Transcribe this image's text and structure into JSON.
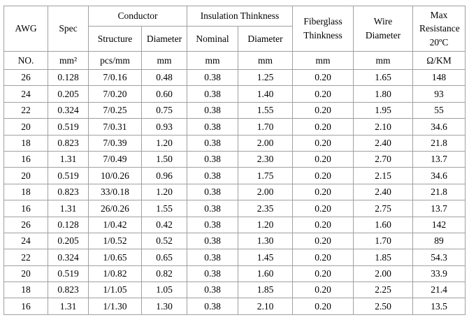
{
  "table": {
    "header": {
      "awg": "AWG",
      "spec": "Spec",
      "conductor": "Conductor",
      "structure": "Structure",
      "conductor_diameter": "Diameter",
      "insulation_thinkness": "Insulation Thinkness",
      "nominal": "Nominal",
      "insulation_diameter": "Diameter",
      "fiberglass_thinkness": "Fiberglass Thinkness",
      "wire_diameter": "Wire Diameter",
      "max_resistance": "Max Resistance 20ºC"
    },
    "units": [
      "NO.",
      "mm²",
      "pcs/mm",
      "mm",
      "mm",
      "mm",
      "mm",
      "mm",
      "Ω/KM"
    ],
    "column_keys": [
      "awg",
      "spec",
      "structure",
      "conductor-diameter",
      "nominal",
      "insulation-diameter",
      "fiberglass-thickness",
      "wire-diameter",
      "max-resistance"
    ],
    "rows": [
      [
        "26",
        "0.128",
        "7/0.16",
        "0.48",
        "0.38",
        "1.25",
        "0.20",
        "1.65",
        "148"
      ],
      [
        "24",
        "0.205",
        "7/0.20",
        "0.60",
        "0.38",
        "1.40",
        "0.20",
        "1.80",
        "93"
      ],
      [
        "22",
        "0.324",
        "7/0.25",
        "0.75",
        "0.38",
        "1.55",
        "0.20",
        "1.95",
        "55"
      ],
      [
        "20",
        "0.519",
        "7/0.31",
        "0.93",
        "0.38",
        "1.70",
        "0.20",
        "2.10",
        "34.6"
      ],
      [
        "18",
        "0.823",
        "7/0.39",
        "1.20",
        "0.38",
        "2.00",
        "0.20",
        "2.40",
        "21.8"
      ],
      [
        "16",
        "1.31",
        "7/0.49",
        "1.50",
        "0.38",
        "2.30",
        "0.20",
        "2.70",
        "13.7"
      ],
      [
        "20",
        "0.519",
        "10/0.26",
        "0.96",
        "0.38",
        "1.75",
        "0.20",
        "2.15",
        "34.6"
      ],
      [
        "18",
        "0.823",
        "33/0.18",
        "1.20",
        "0.38",
        "2.00",
        "0.20",
        "2.40",
        "21.8"
      ],
      [
        "16",
        "1.31",
        "26/0.26",
        "1.55",
        "0.38",
        "2.35",
        "0.20",
        "2.75",
        "13.7"
      ],
      [
        "26",
        "0.128",
        "1/0.42",
        "0.42",
        "0.38",
        "1.20",
        "0.20",
        "1.60",
        "142"
      ],
      [
        "24",
        "0.205",
        "1/0.52",
        "0.52",
        "0.38",
        "1.30",
        "0.20",
        "1.70",
        "89"
      ],
      [
        "22",
        "0.324",
        "1/0.65",
        "0.65",
        "0.38",
        "1.45",
        "0.20",
        "1.85",
        "54.3"
      ],
      [
        "20",
        "0.519",
        "1/0.82",
        "0.82",
        "0.38",
        "1.60",
        "0.20",
        "2.00",
        "33.9"
      ],
      [
        "18",
        "0.823",
        "1/1.05",
        "1.05",
        "0.38",
        "1.85",
        "0.20",
        "2.25",
        "21.4"
      ],
      [
        "16",
        "1.31",
        "1/1.30",
        "1.30",
        "0.38",
        "2.10",
        "0.20",
        "2.50",
        "13.5"
      ]
    ]
  }
}
